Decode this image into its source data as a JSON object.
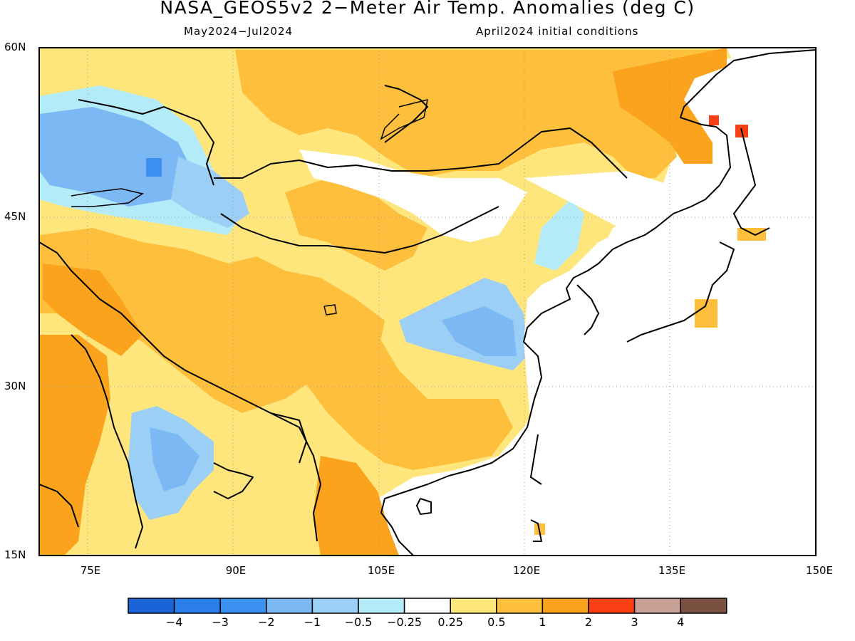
{
  "title": "NASA_GEOS5v2 2−Meter Air Temp. Anomalies (deg C)",
  "subtitle_left": "May2024−Jul2024",
  "subtitle_right": "April2024 initial conditions",
  "lat_labels": [
    "60N",
    "45N",
    "30N",
    "15N"
  ],
  "lon_labels": [
    "75E",
    "90E",
    "105E",
    "120E",
    "135E",
    "150E"
  ],
  "colorbar": {
    "colors": [
      "#1a64d8",
      "#2a7ee8",
      "#3b91f0",
      "#7cb8f3",
      "#9bcff5",
      "#b4ebf8",
      "#ffffff",
      "#fee67d",
      "#fdbf3c",
      "#fba31d",
      "#fa3f15",
      "#c9a096",
      "#7a5040"
    ],
    "labels": [
      "−4",
      "−3",
      "−2",
      "−1",
      "−0.5",
      "−0.25",
      "0.25",
      "0.5",
      "1",
      "2",
      "3",
      "4"
    ]
  }
}
